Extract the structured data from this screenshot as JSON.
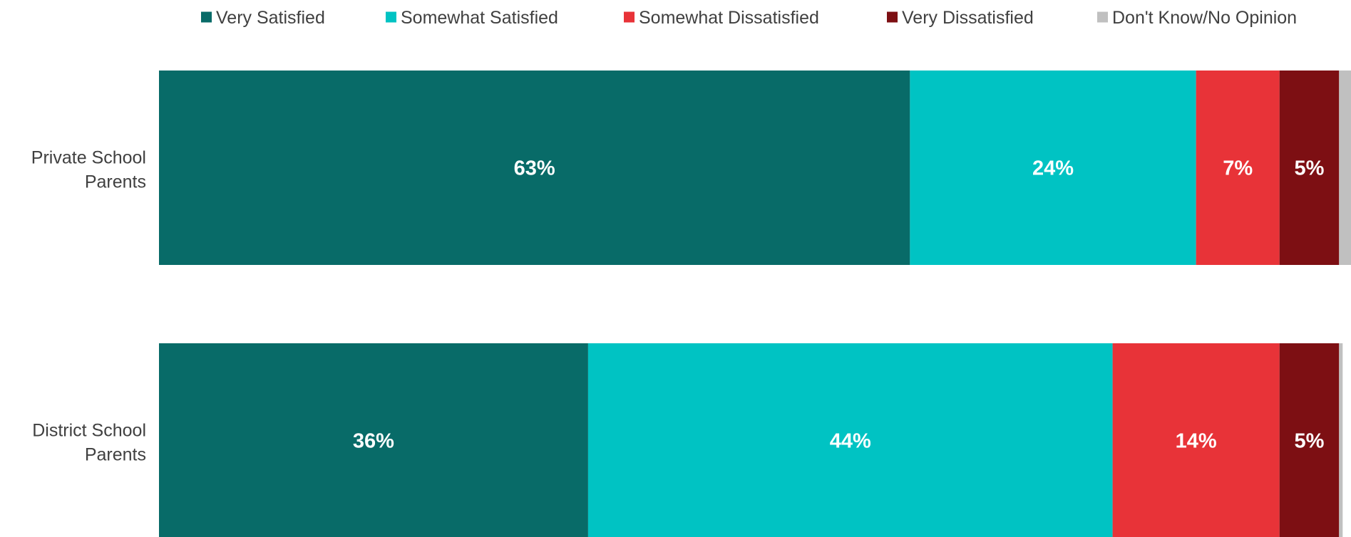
{
  "chart_data": {
    "type": "bar",
    "orientation": "horizontal",
    "stacked": true,
    "title": "",
    "xlabel": "",
    "ylabel": "",
    "xlim": [
      0,
      100
    ],
    "grid": false,
    "legend_position": "top",
    "categories": [
      [
        "Private School",
        "Parents"
      ],
      [
        "District School",
        "Parents"
      ]
    ],
    "series": [
      {
        "name": "Very Satisfied",
        "color": "#086b68",
        "values": [
          63,
          36
        ],
        "labels": [
          "63%",
          "36%"
        ]
      },
      {
        "name": "Somewhat Satisfied",
        "color": "#00c3c3",
        "values": [
          24,
          44
        ],
        "labels": [
          "24%",
          "44%"
        ]
      },
      {
        "name": "Somewhat Dissatisfied",
        "color": "#e83338",
        "values": [
          7,
          14
        ],
        "labels": [
          "7%",
          "14%"
        ]
      },
      {
        "name": "Very Dissatisfied",
        "color": "#7d0f13",
        "values": [
          5,
          5
        ],
        "labels": [
          "5%",
          "5%"
        ]
      },
      {
        "name": "Don't Know/No Opinion",
        "color": "#c0c0c0",
        "values": [
          1.5,
          0.3
        ],
        "labels": [
          "",
          ""
        ]
      }
    ]
  }
}
